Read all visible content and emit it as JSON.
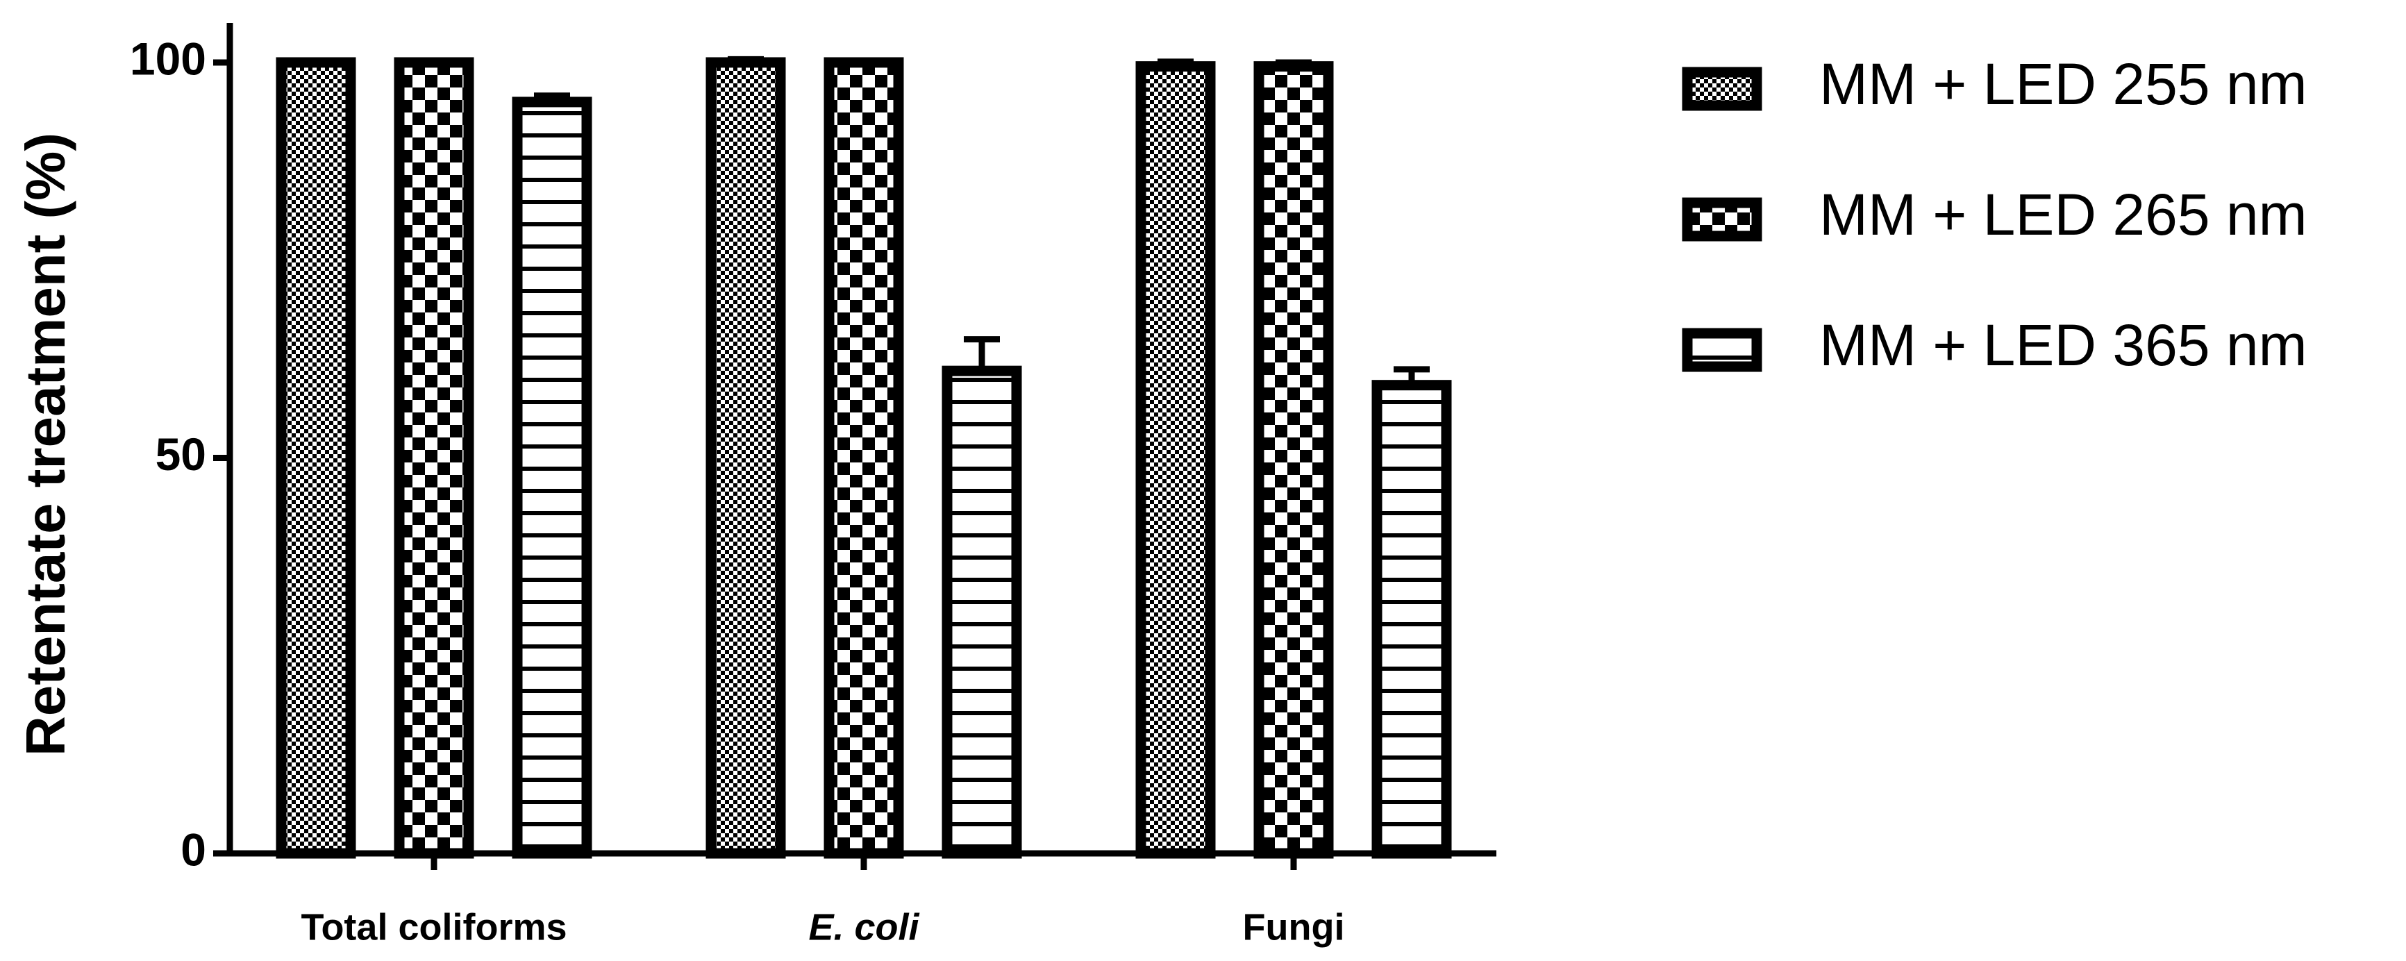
{
  "chart_data": {
    "type": "bar",
    "y_label": "Retentate treatment (%)",
    "categories": [
      "Total coliforms",
      "E. coli",
      "Fungi"
    ],
    "category_italic": [
      false,
      true,
      false
    ],
    "series": [
      {
        "name": "MM + LED 255 nm",
        "pattern": "fine-checker",
        "color": "#000000",
        "values": [
          100,
          100,
          99.5
        ],
        "errors": [
          0,
          0.4,
          0.6
        ]
      },
      {
        "name": "MM + LED 265 nm",
        "pattern": "checker",
        "color": "#000000",
        "values": [
          100,
          100,
          99.5
        ],
        "errors": [
          0,
          0,
          0.5
        ]
      },
      {
        "name": "MM + LED 365 nm",
        "pattern": "stripes",
        "color": "#000000",
        "values": [
          95,
          61,
          59.2
        ],
        "errors": [
          0.8,
          4,
          2
        ]
      }
    ],
    "ylim": [
      0,
      105
    ],
    "yticks": [
      0,
      50,
      100
    ],
    "grid": false,
    "legend": "right"
  }
}
